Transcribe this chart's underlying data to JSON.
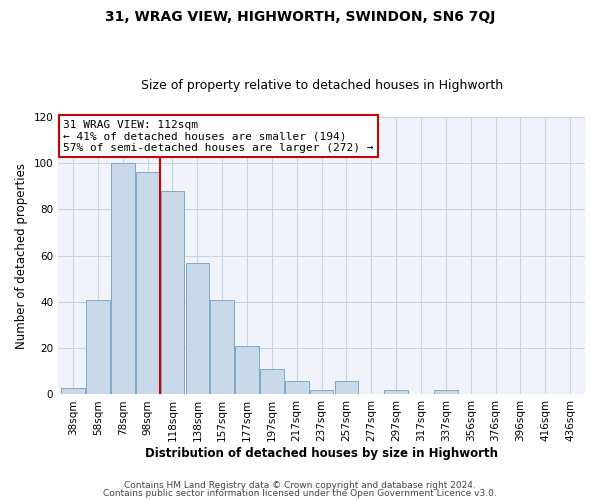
{
  "title": "31, WRAG VIEW, HIGHWORTH, SWINDON, SN6 7QJ",
  "subtitle": "Size of property relative to detached houses in Highworth",
  "xlabel": "Distribution of detached houses by size in Highworth",
  "ylabel": "Number of detached properties",
  "bar_labels": [
    "38sqm",
    "58sqm",
    "78sqm",
    "98sqm",
    "118sqm",
    "138sqm",
    "157sqm",
    "177sqm",
    "197sqm",
    "217sqm",
    "237sqm",
    "257sqm",
    "277sqm",
    "297sqm",
    "317sqm",
    "337sqm",
    "356sqm",
    "376sqm",
    "396sqm",
    "416sqm",
    "436sqm"
  ],
  "bar_values": [
    3,
    41,
    100,
    96,
    88,
    57,
    41,
    21,
    11,
    6,
    2,
    6,
    0,
    2,
    0,
    2,
    0,
    0,
    0,
    0,
    0
  ],
  "bar_color": "#c9d9ea",
  "bar_edge_color": "#7baac8",
  "ylim": [
    0,
    120
  ],
  "yticks": [
    0,
    20,
    40,
    60,
    80,
    100,
    120
  ],
  "vline_x_index": 4,
  "vline_color": "#cc0000",
  "annotation_text": "31 WRAG VIEW: 112sqm\n← 41% of detached houses are smaller (194)\n57% of semi-detached houses are larger (272) →",
  "annotation_box_facecolor": "#ffffff",
  "annotation_box_edgecolor": "#cc0000",
  "footer1": "Contains HM Land Registry data © Crown copyright and database right 2024.",
  "footer2": "Contains public sector information licensed under the Open Government Licence v3.0.",
  "fig_bg_color": "#ffffff",
  "plot_bg_color": "#f0f4fa",
  "grid_color": "#c8d4e0",
  "title_fontsize": 10,
  "subtitle_fontsize": 9,
  "axis_label_fontsize": 8.5,
  "tick_fontsize": 7.5,
  "footer_fontsize": 6.5,
  "annotation_fontsize": 8
}
